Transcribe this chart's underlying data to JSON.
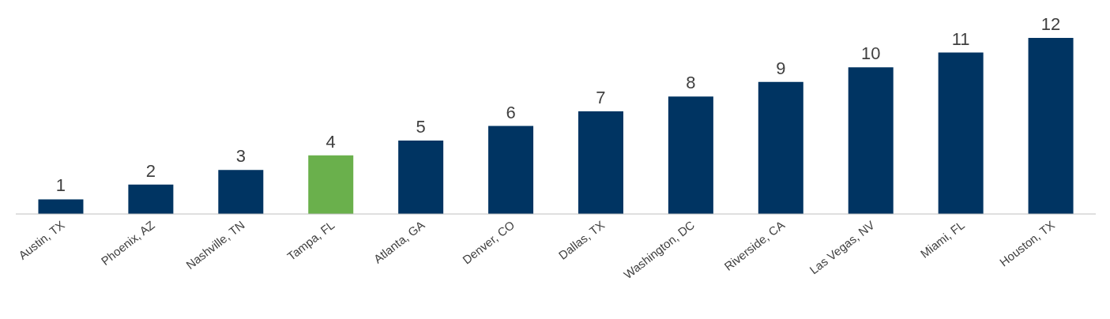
{
  "chart_data": {
    "type": "bar",
    "categories": [
      "Austin, TX",
      "Phoenix, AZ",
      "Nashville, TN",
      "Tampa, FL",
      "Atlanta, GA",
      "Denver, CO",
      "Dallas, TX",
      "Washington, DC",
      "Riverside, CA",
      "Las Vegas, NV",
      "Miami, FL",
      "Houston, TX"
    ],
    "values": [
      1,
      2,
      3,
      4,
      5,
      6,
      7,
      8,
      9,
      10,
      11,
      12
    ],
    "colors": [
      "#003462",
      "#003462",
      "#003462",
      "#6ab04c",
      "#003462",
      "#003462",
      "#003462",
      "#003462",
      "#003462",
      "#003462",
      "#003462",
      "#003462"
    ],
    "data_labels": true,
    "grid": false,
    "legend": false
  }
}
